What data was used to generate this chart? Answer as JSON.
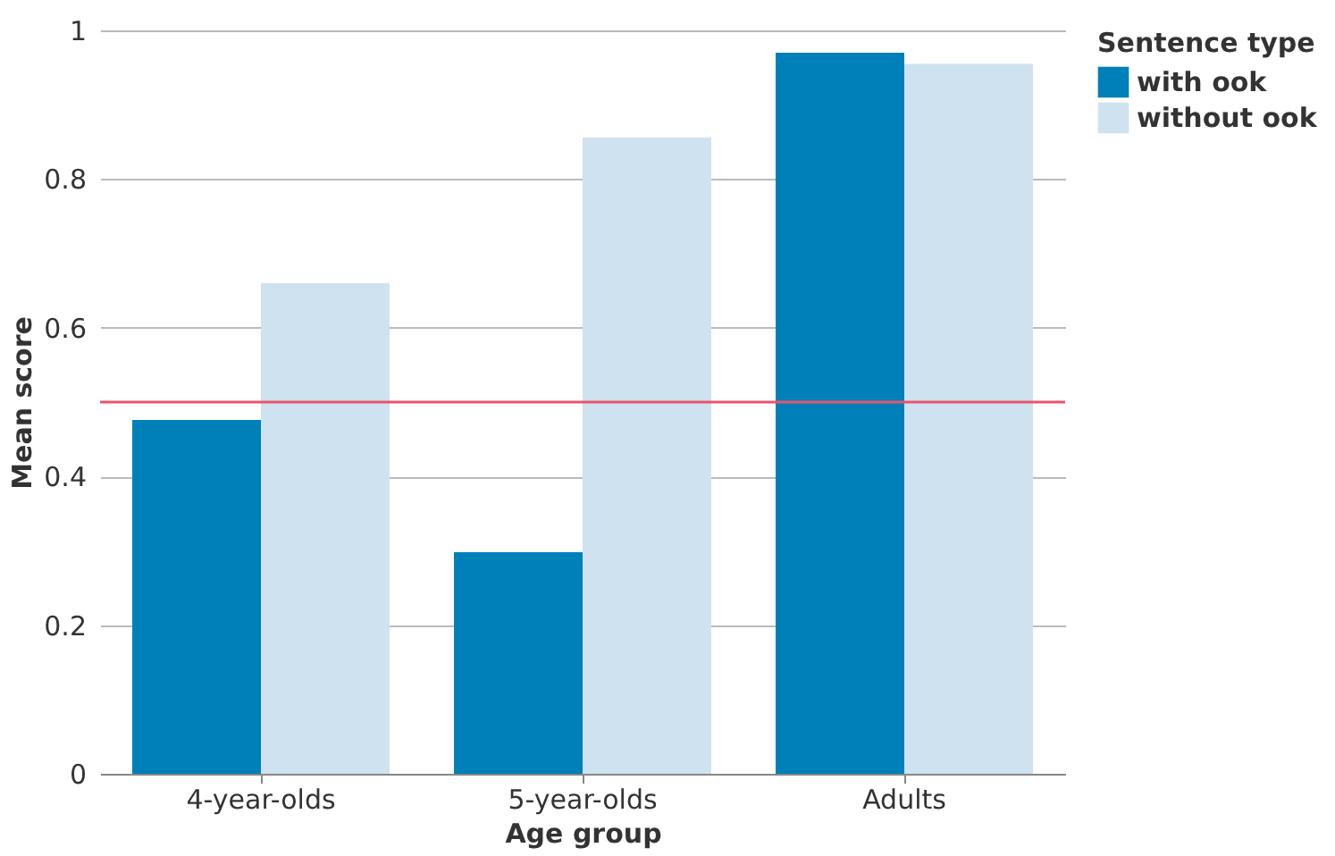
{
  "chart_data": {
    "type": "bar",
    "xlabel": "Age group",
    "ylabel": "Mean score",
    "legend_title": "Sentence type",
    "categories": [
      "4-year-olds",
      "5-year-olds",
      "Adults"
    ],
    "series": [
      {
        "name": "with ook",
        "color": "#0080b8",
        "values": [
          0.476,
          0.298,
          0.97
        ]
      },
      {
        "name": "without ook",
        "color": "#cfe2ef",
        "values": [
          0.66,
          0.856,
          0.955
        ]
      }
    ],
    "ylim": [
      0,
      1
    ],
    "yticks": [
      0,
      0.2,
      0.4,
      0.6,
      0.8,
      1
    ],
    "grid": "y",
    "legend": "top right",
    "ref_lines": [
      {
        "axis": "y",
        "value": 0.5,
        "label": null,
        "color": "#e8546e"
      }
    ]
  }
}
